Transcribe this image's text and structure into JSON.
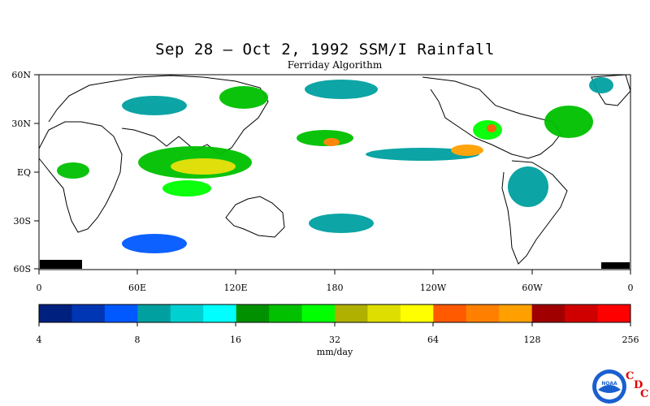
{
  "title": "Sep 28 – Oct 2, 1992 SSM/I Rainfall",
  "subtitle": "Ferriday Algorithm",
  "lat_labels": [
    "60N",
    "30N",
    "EQ",
    "30S",
    "60S"
  ],
  "lon_labels": [
    "0",
    "60E",
    "120E",
    "180",
    "120W",
    "60W",
    "0"
  ],
  "colorbar": {
    "colors": [
      "#002080",
      "#0036b4",
      "#0058ff",
      "#00a0a0",
      "#00d0d0",
      "#00ffff",
      "#009000",
      "#00c000",
      "#00ff00",
      "#b0b000",
      "#dede00",
      "#ffff00",
      "#ff5a00",
      "#ff8000",
      "#ffa000",
      "#a00000",
      "#d00000",
      "#ff0000"
    ],
    "tick_labels": [
      "4",
      "8",
      "16",
      "32",
      "64",
      "128",
      "256"
    ],
    "units": "mm/day"
  },
  "logo": {
    "noaa_text": "NOAA",
    "c1": "C",
    "d": "D",
    "c2": "C"
  }
}
